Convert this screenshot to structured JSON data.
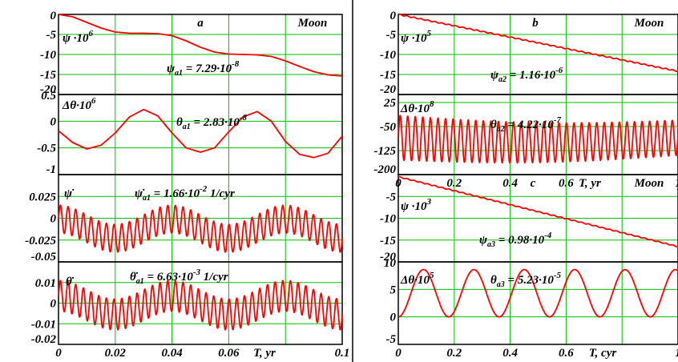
{
  "chart_data": [
    {
      "id": "a1",
      "type": "line",
      "panel_letter": "a",
      "body_label": "Moon",
      "ylabel_base": "ψ ·10",
      "ylabel_exp": "6",
      "annotation": {
        "sym": "ψ",
        "sub": "a1",
        "text": " = 7.29·10",
        "exp": "-8",
        "unit": ""
      },
      "xlim": [
        0,
        0.1
      ],
      "ylim": [
        -20,
        0
      ],
      "xticks": [
        0,
        0.02,
        0.04,
        0.06,
        0.08,
        0.1
      ],
      "yticks": [
        0,
        -5,
        -10,
        -15,
        -20
      ],
      "ytick_labels": [
        "0",
        "-5",
        "-10",
        "-15",
        "-20"
      ],
      "x": [
        0,
        0.005,
        0.01,
        0.015,
        0.02,
        0.025,
        0.03,
        0.035,
        0.04,
        0.045,
        0.05,
        0.055,
        0.06,
        0.065,
        0.07,
        0.075,
        0.08,
        0.085,
        0.09,
        0.095,
        0.1
      ],
      "y": [
        0,
        -0.6,
        -2.0,
        -3.4,
        -4.4,
        -4.7,
        -4.7,
        -4.8,
        -5.3,
        -6.6,
        -8.2,
        -9.4,
        -9.9,
        -10.0,
        -10.1,
        -10.5,
        -11.6,
        -13.0,
        -14.3,
        -15.1,
        -15.4
      ]
    },
    {
      "id": "a2",
      "type": "line",
      "ylabel_base": "Δθ·10",
      "ylabel_exp": "6",
      "annotation": {
        "sym": "θ",
        "sub": "a1",
        "text": " = 2.83·10",
        "exp": "-8",
        "unit": ""
      },
      "xlim": [
        0,
        0.1
      ],
      "ylim": [
        -1,
        0.5
      ],
      "xticks": [
        0,
        0.02,
        0.04,
        0.06,
        0.08,
        0.1
      ],
      "yticks": [
        0.5,
        0,
        -0.5,
        -1
      ],
      "ytick_labels": [
        "0.5",
        "0",
        "-0.5",
        "-1"
      ],
      "x": [
        0,
        0.005,
        0.01,
        0.015,
        0.02,
        0.025,
        0.03,
        0.035,
        0.04,
        0.045,
        0.05,
        0.055,
        0.06,
        0.065,
        0.07,
        0.075,
        0.08,
        0.085,
        0.09,
        0.095,
        0.1
      ],
      "y": [
        -0.18,
        -0.4,
        -0.52,
        -0.45,
        -0.22,
        0.08,
        0.22,
        0.1,
        -0.22,
        -0.5,
        -0.58,
        -0.5,
        -0.2,
        0.08,
        0.18,
        0.0,
        -0.38,
        -0.62,
        -0.68,
        -0.6,
        -0.28
      ]
    },
    {
      "id": "a3",
      "type": "line",
      "ylabel_base": "ψ̇",
      "ylabel_exp": "",
      "annotation": {
        "sym": "ψ̇",
        "sub": "a1",
        "text": " = 1.66·10",
        "exp": "-2",
        "unit": " 1/cyr"
      },
      "xlim": [
        0,
        0.1
      ],
      "ylim": [
        -0.05,
        0.05
      ],
      "xticks": [
        0,
        0.02,
        0.04,
        0.06,
        0.08,
        0.1
      ],
      "yticks": [
        0.025,
        0,
        -0.025,
        -0.05
      ],
      "ytick_labels": [
        "0.025",
        "0",
        "-0.025",
        "-0.05"
      ],
      "oscillation": {
        "cycles": 37,
        "offset": -0.012,
        "mod_amplitude": 0.011,
        "mod_period": 0.04,
        "mod_phase": 0.75,
        "amplitude": 0.016
      }
    },
    {
      "id": "a4",
      "type": "line",
      "ylabel_base": "θ̇",
      "ylabel_exp": "",
      "annotation": {
        "sym": "θ̇",
        "sub": "a1",
        "text": " = 6.63·10",
        "exp": "-3",
        "unit": " 1/cyr"
      },
      "xlim": [
        0,
        0.1
      ],
      "ylim": [
        -0.02,
        0.02
      ],
      "xticks": [
        0,
        0.02,
        0.04,
        0.06,
        0.08,
        0.1
      ],
      "yticks": [
        0.01,
        0,
        -0.01,
        -0.02
      ],
      "ytick_labels": [
        "0.01",
        "0",
        "-0.01",
        "-0.02"
      ],
      "xtick_labels": [
        "0",
        "0.02",
        "0.04",
        "0.06",
        "",
        "0.1"
      ],
      "xlabel": "T, yr",
      "oscillation": {
        "cycles": 37,
        "offset": -0.001,
        "mod_amplitude": 0.0045,
        "mod_period": 0.04,
        "mod_phase": 0.75,
        "amplitude": 0.0075
      }
    },
    {
      "id": "b1",
      "type": "line",
      "panel_letter": "b",
      "body_label": "Moon",
      "ylabel_base": "ψ ·10",
      "ylabel_exp": "5",
      "annotation": {
        "sym": "ψ",
        "sub": "a2",
        "text": " = 1.16·10",
        "exp": "-6",
        "unit": ""
      },
      "xlim": [
        0,
        1
      ],
      "ylim": [
        -20,
        0
      ],
      "xticks": [
        0,
        0.2,
        0.4,
        0.6,
        0.8,
        1
      ],
      "yticks": [
        0,
        -5,
        -10,
        -15,
        -20
      ],
      "ytick_labels": [
        "0",
        "-5",
        "-10",
        "-15",
        "-20"
      ],
      "x": [
        0,
        1
      ],
      "y": [
        0,
        -14.2
      ],
      "ripple": 0.12
    },
    {
      "id": "b2",
      "type": "line",
      "ylabel_base": "Δθ·10",
      "ylabel_exp": "8",
      "annotation": {
        "sym": "θ",
        "sub": "a2",
        "text": " = 4.22·10",
        "exp": "-7",
        "unit": ""
      },
      "xlim": [
        0,
        1
      ],
      "ylim": [
        -200,
        50
      ],
      "xticks": [
        0,
        0.2,
        0.4,
        0.6,
        0.8,
        1
      ],
      "yticks": [
        25,
        -50,
        -125,
        -200
      ],
      "ytick_labels": [
        "25",
        "-50",
        "-125",
        "-200"
      ],
      "xtick_labels": [
        "0",
        "0.2",
        "0.4",
        "0.6",
        "",
        "1"
      ],
      "xlabel": "T, yr",
      "oscillation": {
        "cycles": 37,
        "offset": -85,
        "drift": -15,
        "amplitude": 45,
        "decay_from": 70,
        "decay_to": 55
      }
    },
    {
      "id": "c1",
      "type": "line",
      "panel_letter": "c",
      "body_label": "Moon",
      "ylabel_base": "ψ ·10",
      "ylabel_exp": "3",
      "annotation": {
        "sym": "ψ",
        "sub": "a3",
        "text": " = 0.98·10",
        "exp": "-4",
        "unit": ""
      },
      "xlim": [
        0,
        1
      ],
      "ylim": [
        -20,
        0
      ],
      "xticks": [
        0,
        0.2,
        0.4,
        0.6,
        0.8,
        1
      ],
      "yticks": [
        0,
        -5,
        -10,
        -15,
        -20
      ],
      "ytick_labels": [
        "",
        "-5",
        "-10",
        "-15",
        "-20"
      ],
      "x": [
        0,
        1
      ],
      "y": [
        -0.5,
        -16.5
      ],
      "ripple": 0.1
    },
    {
      "id": "c2",
      "type": "line",
      "ylabel_base": "Δθ·10",
      "ylabel_exp": "5",
      "annotation": {
        "sym": "θ",
        "sub": "a3",
        "text": " = 5.23·10",
        "exp": "-5",
        "unit": ""
      },
      "xlim": [
        0,
        1
      ],
      "ylim": [
        -5,
        10
      ],
      "xticks": [
        0,
        0.2,
        0.4,
        0.6,
        0.8,
        1
      ],
      "yticks": [
        10,
        5,
        0,
        -5
      ],
      "ytick_labels": [
        "10",
        "5",
        "0",
        "-5"
      ],
      "xtick_labels": [
        "0",
        "0.2",
        "0.4",
        "0.6",
        "",
        "1"
      ],
      "xlabel": "T, cyr",
      "oscillation": {
        "cycles": 5.55,
        "offset": 4.3,
        "amplitude": 4.3,
        "phase": -1.5708
      }
    }
  ]
}
